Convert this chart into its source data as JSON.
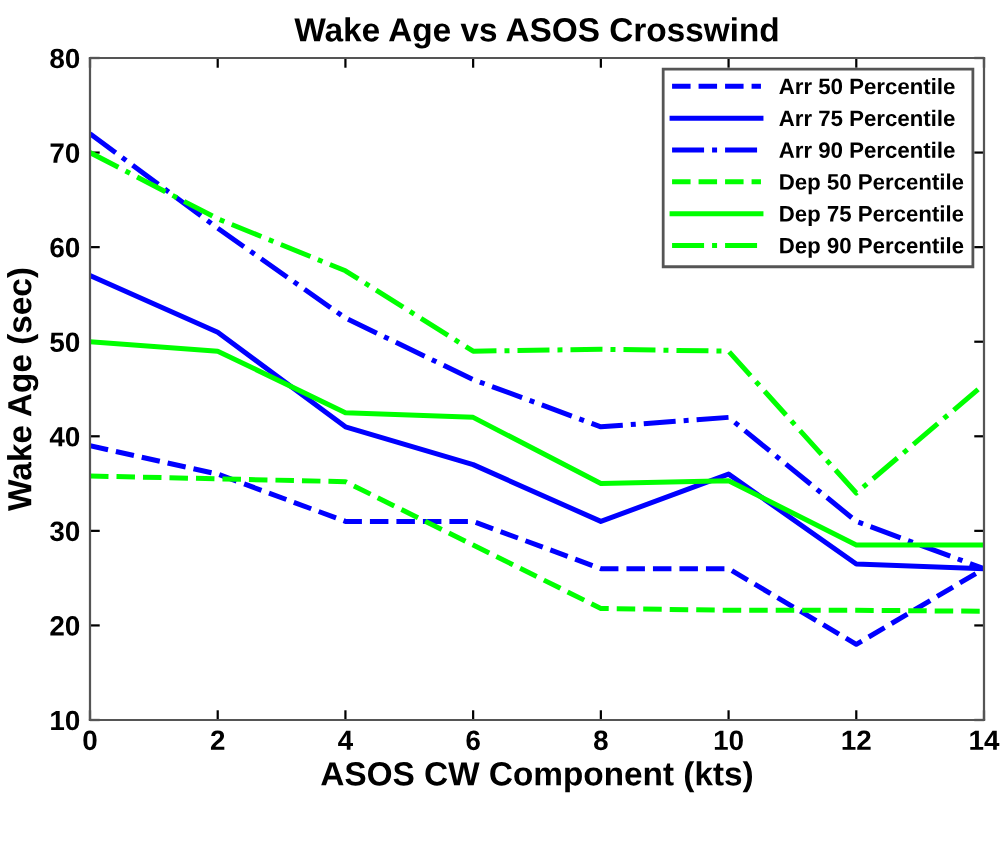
{
  "chart_data": {
    "type": "line",
    "title": "Wake Age vs ASOS Crosswind",
    "xlabel": "ASOS CW Component (kts)",
    "ylabel": "Wake Age (sec)",
    "x": [
      0,
      2,
      4,
      6,
      8,
      10,
      12,
      14
    ],
    "series": [
      {
        "name": "Arr 50 Percentile",
        "color": "#0000ff",
        "line_style": "dashed",
        "values": [
          39,
          36,
          31,
          31,
          26,
          26,
          18,
          26
        ]
      },
      {
        "name": "Arr 75 Percentile",
        "color": "#0000ff",
        "line_style": "solid",
        "values": [
          57,
          51,
          41,
          37,
          31,
          36,
          26.5,
          26
        ]
      },
      {
        "name": "Arr 90 Percentile",
        "color": "#0000ff",
        "line_style": "dashdot",
        "values": [
          72,
          62,
          52.5,
          46,
          41,
          42,
          31,
          26
        ]
      },
      {
        "name": "Dep 50 Percentile",
        "color": "#00ff00",
        "line_style": "dashed",
        "values": [
          35.8,
          35.5,
          35.2,
          28.5,
          21.8,
          21.6,
          21.6,
          21.5
        ]
      },
      {
        "name": "Dep 75 Percentile",
        "color": "#00ff00",
        "line_style": "solid",
        "values": [
          50,
          49,
          42.5,
          42,
          35,
          35.3,
          28.5,
          28.5
        ]
      },
      {
        "name": "Dep 90 Percentile",
        "color": "#00ff00",
        "line_style": "dashdot",
        "values": [
          70,
          63,
          57.5,
          49,
          49.2,
          49,
          34,
          45.5
        ]
      }
    ],
    "xlim": [
      0,
      14
    ],
    "xticks": [
      0,
      2,
      4,
      6,
      8,
      10,
      12,
      14
    ],
    "ylim": [
      10,
      80
    ],
    "yticks": [
      10,
      20,
      30,
      40,
      50,
      60,
      70,
      80
    ],
    "grid": false,
    "legend": "top right",
    "marker": "none"
  }
}
